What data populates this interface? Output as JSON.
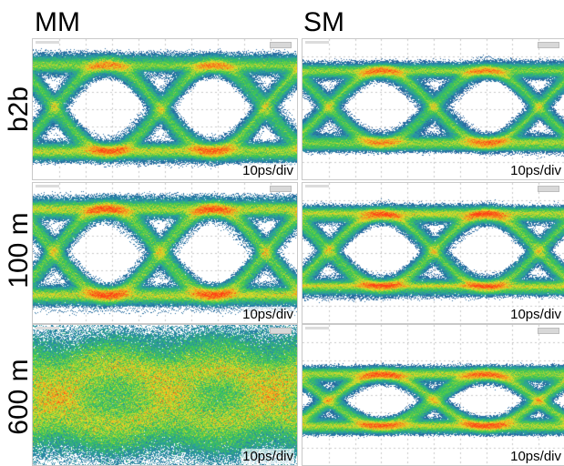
{
  "columns": [
    {
      "id": "mm",
      "title": "MM"
    },
    {
      "id": "sm",
      "title": "SM"
    }
  ],
  "rows": [
    {
      "id": "b2b",
      "label": "b2b"
    },
    {
      "id": "100m",
      "label": "100 m"
    },
    {
      "id": "600m",
      "label": "600 m"
    }
  ],
  "panels": [
    {
      "row": "b2b",
      "col": "mm",
      "scale": "10ps/div",
      "eye": "open-wide"
    },
    {
      "row": "b2b",
      "col": "sm",
      "scale": "10ps/div",
      "eye": "open-narrow"
    },
    {
      "row": "100m",
      "col": "mm",
      "scale": "10ps/div",
      "eye": "open-wide"
    },
    {
      "row": "100m",
      "col": "sm",
      "scale": "10ps/div",
      "eye": "open-narrow"
    },
    {
      "row": "600m",
      "col": "mm",
      "scale": "10ps/div",
      "eye": "closed"
    },
    {
      "row": "600m",
      "col": "sm",
      "scale": "10ps/div",
      "eye": "open-small"
    }
  ],
  "colors": {
    "heat_low": "#1e3c8c",
    "heat_mid": "#2ec45a",
    "heat_high": "#ff3a10",
    "grid": "#c8c8c8"
  }
}
